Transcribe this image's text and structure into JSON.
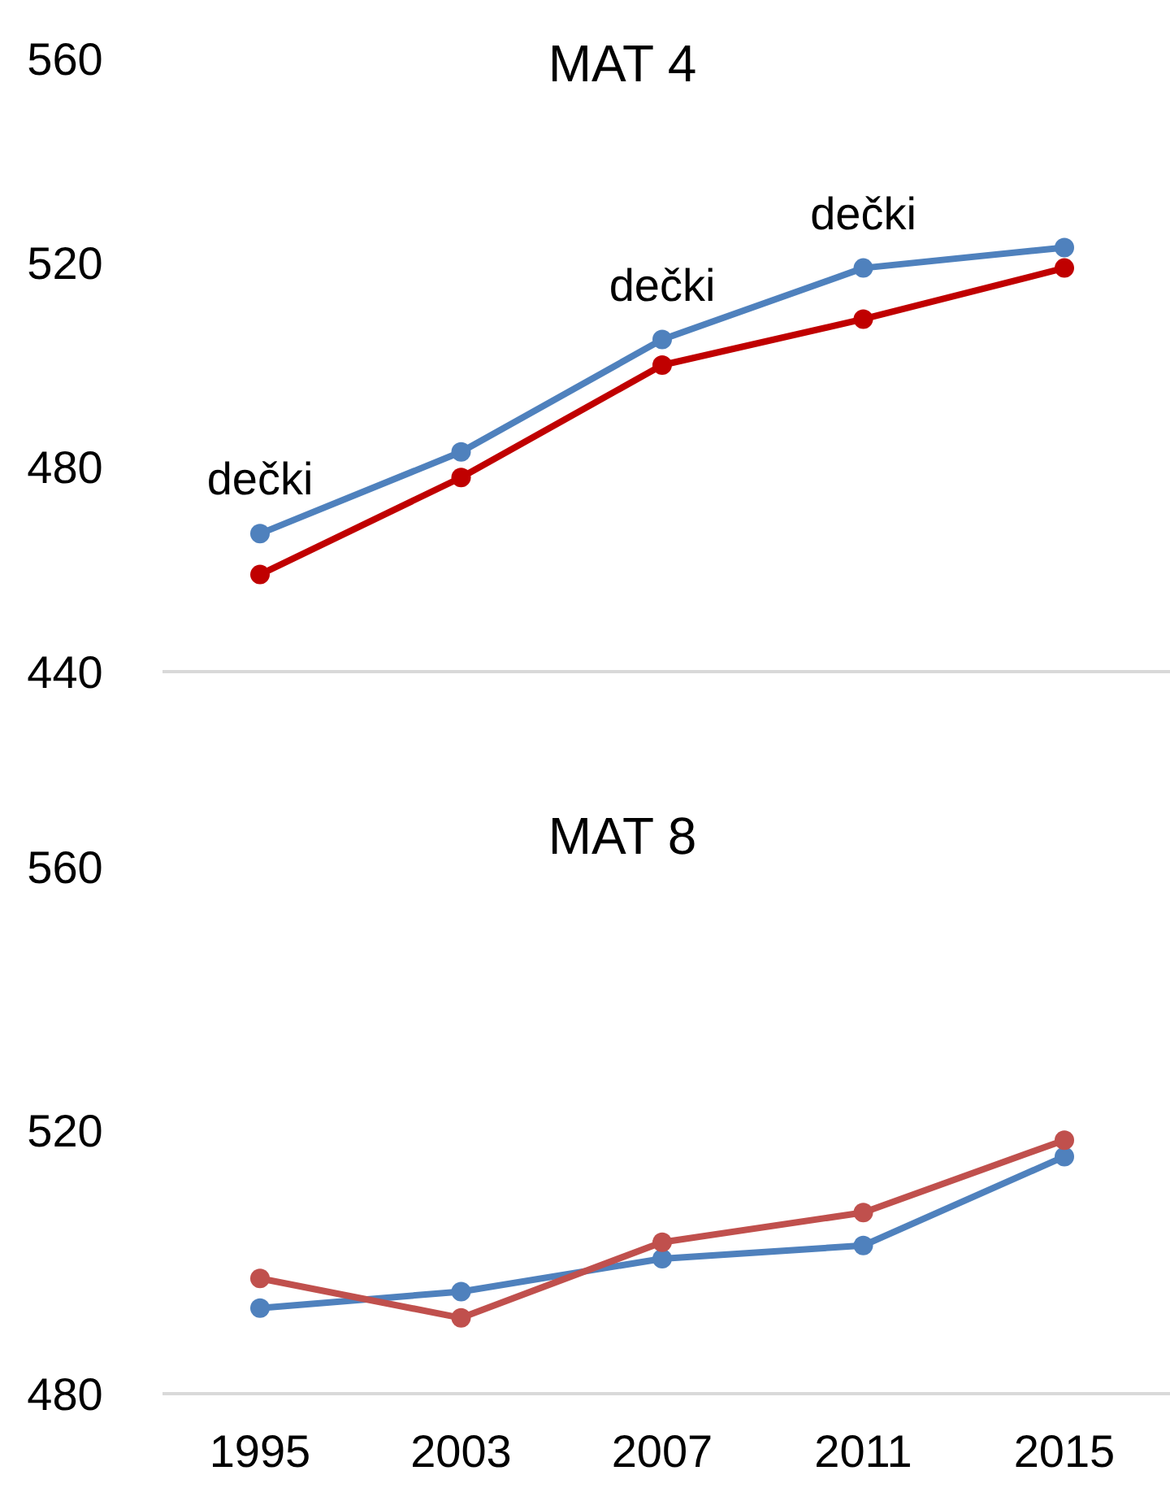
{
  "chart_data": [
    {
      "type": "line",
      "title": "MAT 4",
      "categories": [
        "1995",
        "2003",
        "2007",
        "2011",
        "2015"
      ],
      "ylim": [
        440,
        560
      ],
      "yticks": [
        440,
        480,
        520,
        560
      ],
      "marker": "circle",
      "grid": false,
      "tick_labels": "y",
      "series": [
        {
          "color": "#4f81bd",
          "values": [
            467,
            483,
            505,
            519,
            523
          ]
        },
        {
          "color": "#c00000",
          "values": [
            459,
            478,
            500,
            509,
            519
          ]
        }
      ],
      "annotations": [
        {
          "text": "dečki",
          "x": "1995",
          "y": 467
        },
        {
          "text": "dečki",
          "x": "2007",
          "y": 505
        },
        {
          "text": "dečki",
          "x": "2011",
          "y": 519
        }
      ]
    },
    {
      "type": "line",
      "title": "MAT 8",
      "categories": [
        "1995",
        "2003",
        "2007",
        "2011",
        "2015"
      ],
      "ylim": [
        480,
        560
      ],
      "yticks": [
        480,
        520,
        560
      ],
      "marker": "circle",
      "grid": false,
      "series": [
        {
          "color": "#4f81bd",
          "values": [
            493,
            495.5,
            500.5,
            502.5,
            516
          ]
        },
        {
          "color": "#c0504d",
          "values": [
            497.5,
            491.5,
            503,
            507.5,
            518.5
          ]
        }
      ]
    }
  ]
}
